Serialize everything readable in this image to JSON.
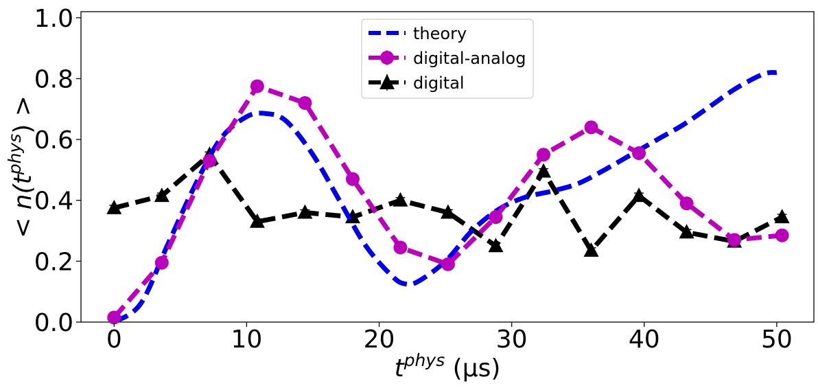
{
  "chart_data": {
    "type": "line",
    "title": "",
    "xlabel": {
      "base": "t",
      "sup": "phys",
      "unit": " (μs)"
    },
    "ylabel": {
      "prefix": "< n(t",
      "sup": "phys",
      "suffix": ") >"
    },
    "xlim": [
      -2.5,
      52.8
    ],
    "ylim": [
      0.0,
      1.02
    ],
    "xticks": [
      0,
      10,
      20,
      30,
      40,
      50
    ],
    "xtick_labels": [
      "0",
      "10",
      "20",
      "30",
      "40",
      "50"
    ],
    "yticks": [
      0.0,
      0.2,
      0.4,
      0.6,
      0.8,
      1.0
    ],
    "ytick_labels": [
      "0.0",
      "0.2",
      "0.4",
      "0.6",
      "0.8",
      "1.0"
    ],
    "grid": false,
    "legend_position": "top-center",
    "series": [
      {
        "name": "theory",
        "color": "#0000ee",
        "style": "dashed",
        "marker": "none",
        "x": [
          0,
          2,
          4,
          6,
          8,
          10,
          11.5,
          13,
          15,
          17,
          19,
          21,
          22,
          23,
          25,
          27,
          29,
          31,
          33,
          35,
          37,
          39,
          41,
          43,
          45,
          47,
          49,
          50
        ],
        "values": [
          0.0,
          0.06,
          0.25,
          0.44,
          0.6,
          0.675,
          0.685,
          0.66,
          0.55,
          0.4,
          0.25,
          0.15,
          0.125,
          0.135,
          0.2,
          0.3,
          0.37,
          0.41,
          0.43,
          0.455,
          0.5,
          0.55,
          0.6,
          0.65,
          0.71,
          0.77,
          0.815,
          0.82
        ]
      },
      {
        "name": "digital-analog",
        "color": "#bb00bb",
        "style": "dashed",
        "marker": "circle",
        "x": [
          0,
          3.6,
          7.2,
          10.8,
          14.4,
          18.0,
          21.6,
          25.2,
          28.8,
          32.4,
          36.0,
          39.6,
          43.2,
          46.8,
          50.4
        ],
        "values": [
          0.015,
          0.195,
          0.53,
          0.775,
          0.72,
          0.47,
          0.245,
          0.19,
          0.345,
          0.55,
          0.64,
          0.555,
          0.39,
          0.27,
          0.285
        ]
      },
      {
        "name": "digital",
        "color": "#000000",
        "style": "dashed",
        "marker": "triangle",
        "x": [
          0,
          3.6,
          7.2,
          10.8,
          14.4,
          18.0,
          21.6,
          25.2,
          28.8,
          32.4,
          36.0,
          39.6,
          43.2,
          46.8,
          50.4
        ],
        "values": [
          0.375,
          0.415,
          0.55,
          0.33,
          0.36,
          0.345,
          0.4,
          0.36,
          0.25,
          0.495,
          0.235,
          0.415,
          0.295,
          0.265,
          0.345
        ]
      }
    ]
  }
}
